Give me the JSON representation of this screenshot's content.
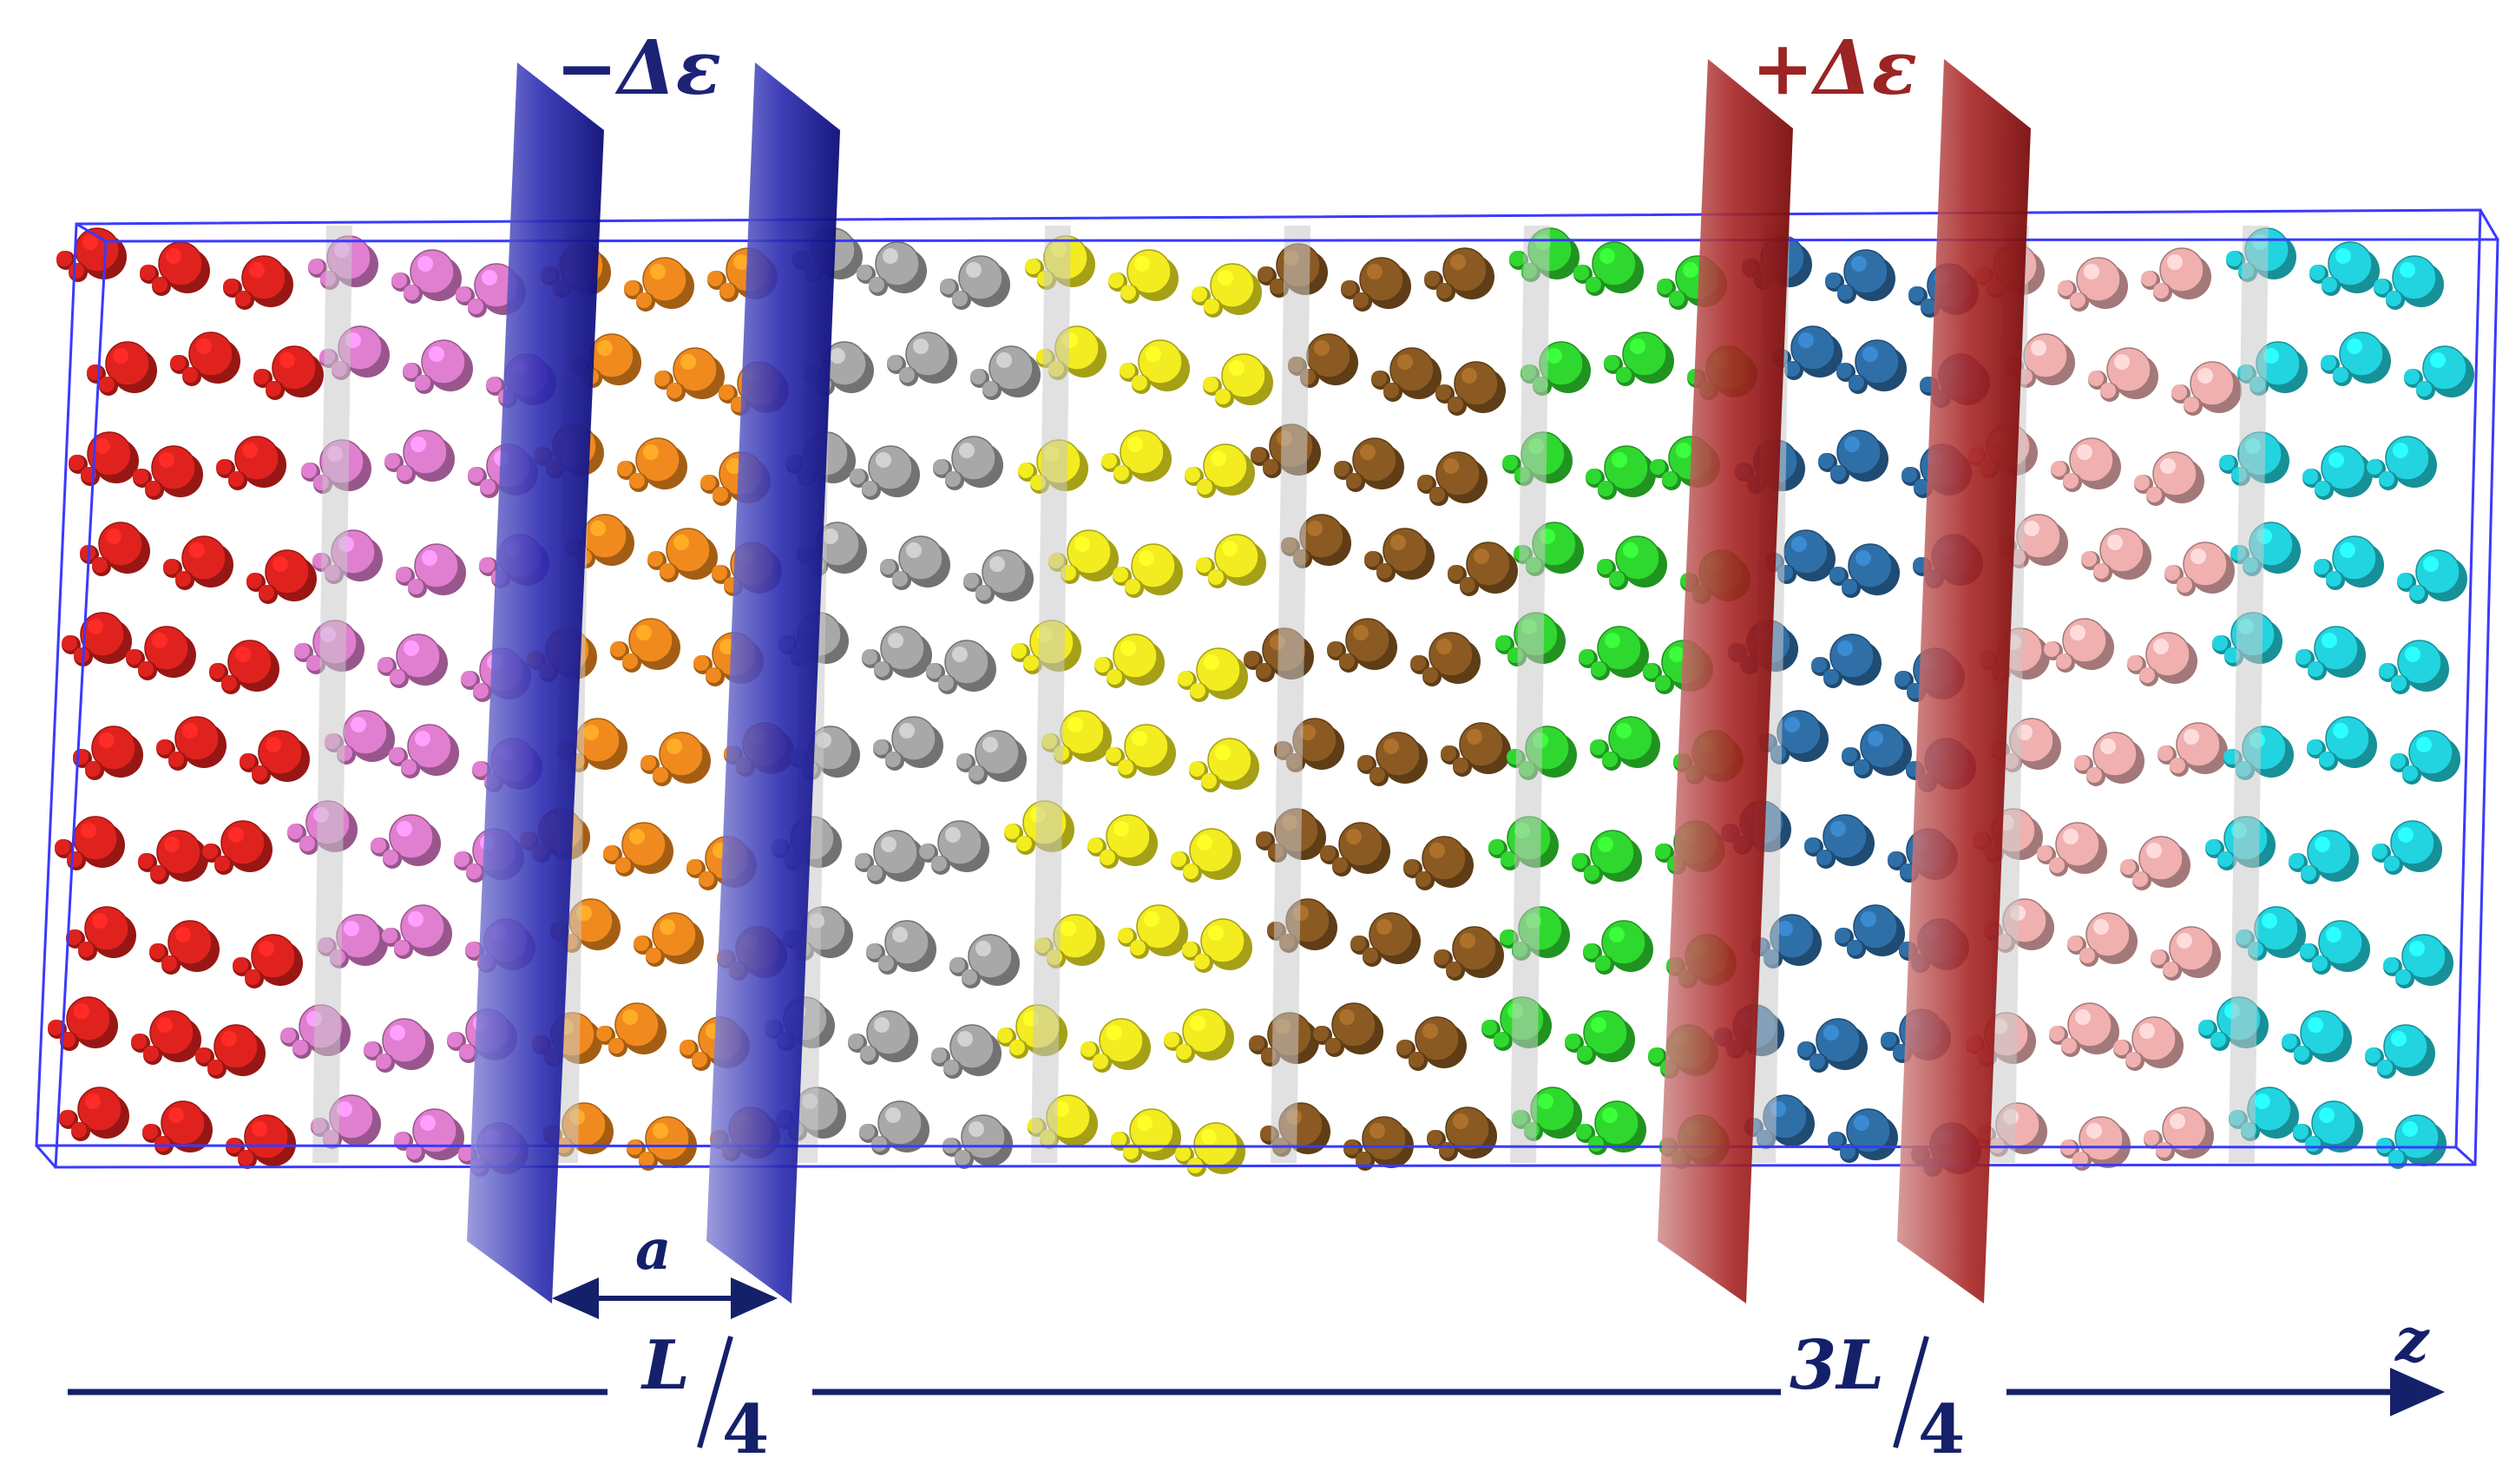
{
  "labels": {
    "minus_delta_eps": "−Δε",
    "plus_delta_eps": "+Δε",
    "a": "a",
    "L": "L",
    "four_left": "4",
    "three_L": "3L",
    "four_right": "4",
    "z": "z"
  },
  "colors": {
    "box_edge": "#3a3aff",
    "blue_plane": "#1a1a9a",
    "red_plane": "#a01818",
    "axis": "#15206a",
    "minus_label": "#1c2377",
    "plus_label": "#9b2424",
    "divider": "#c8c8c8"
  },
  "water_layers": [
    {
      "name": "red",
      "color": "#e0221e"
    },
    {
      "name": "pink",
      "color": "#e07fcf"
    },
    {
      "name": "orange",
      "color": "#f08a1e"
    },
    {
      "name": "gray",
      "color": "#a8a8a8"
    },
    {
      "name": "yellow",
      "color": "#f2ec20"
    },
    {
      "name": "brown",
      "color": "#8a5a22"
    },
    {
      "name": "green",
      "color": "#2fd82f"
    },
    {
      "name": "steel-blue",
      "color": "#2f6fa8"
    },
    {
      "name": "light-pink",
      "color": "#f0b0b0"
    },
    {
      "name": "cyan",
      "color": "#22d4e0"
    }
  ]
}
